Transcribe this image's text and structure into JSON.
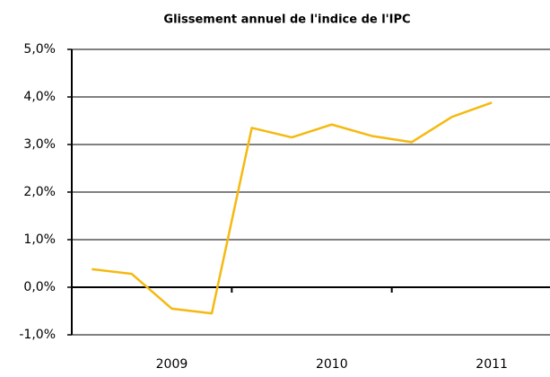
{
  "chart_data": {
    "type": "line",
    "title": "Glissement annuel de l'indice de l'IPC",
    "categories": [
      null,
      null,
      "2009",
      null,
      null,
      null,
      "2010",
      null,
      null,
      null,
      "2011",
      null
    ],
    "series": [
      {
        "name": "IPC",
        "color": "#f5b90f",
        "values": [
          0.38,
          0.28,
          -0.45,
          -0.55,
          3.35,
          3.15,
          3.42,
          3.18,
          3.05,
          3.58,
          3.88,
          null
        ]
      }
    ],
    "ylim": [
      -1,
      5
    ],
    "yticks": [
      {
        "value": -1,
        "label": "-1,0%"
      },
      {
        "value": 0,
        "label": "0,0%"
      },
      {
        "value": 1,
        "label": "1,0%"
      },
      {
        "value": 2,
        "label": "2,0%"
      },
      {
        "value": 3,
        "label": "3,0%"
      },
      {
        "value": 4,
        "label": "4,0%"
      },
      {
        "value": 5,
        "label": "5,0%"
      }
    ],
    "grid": true
  }
}
